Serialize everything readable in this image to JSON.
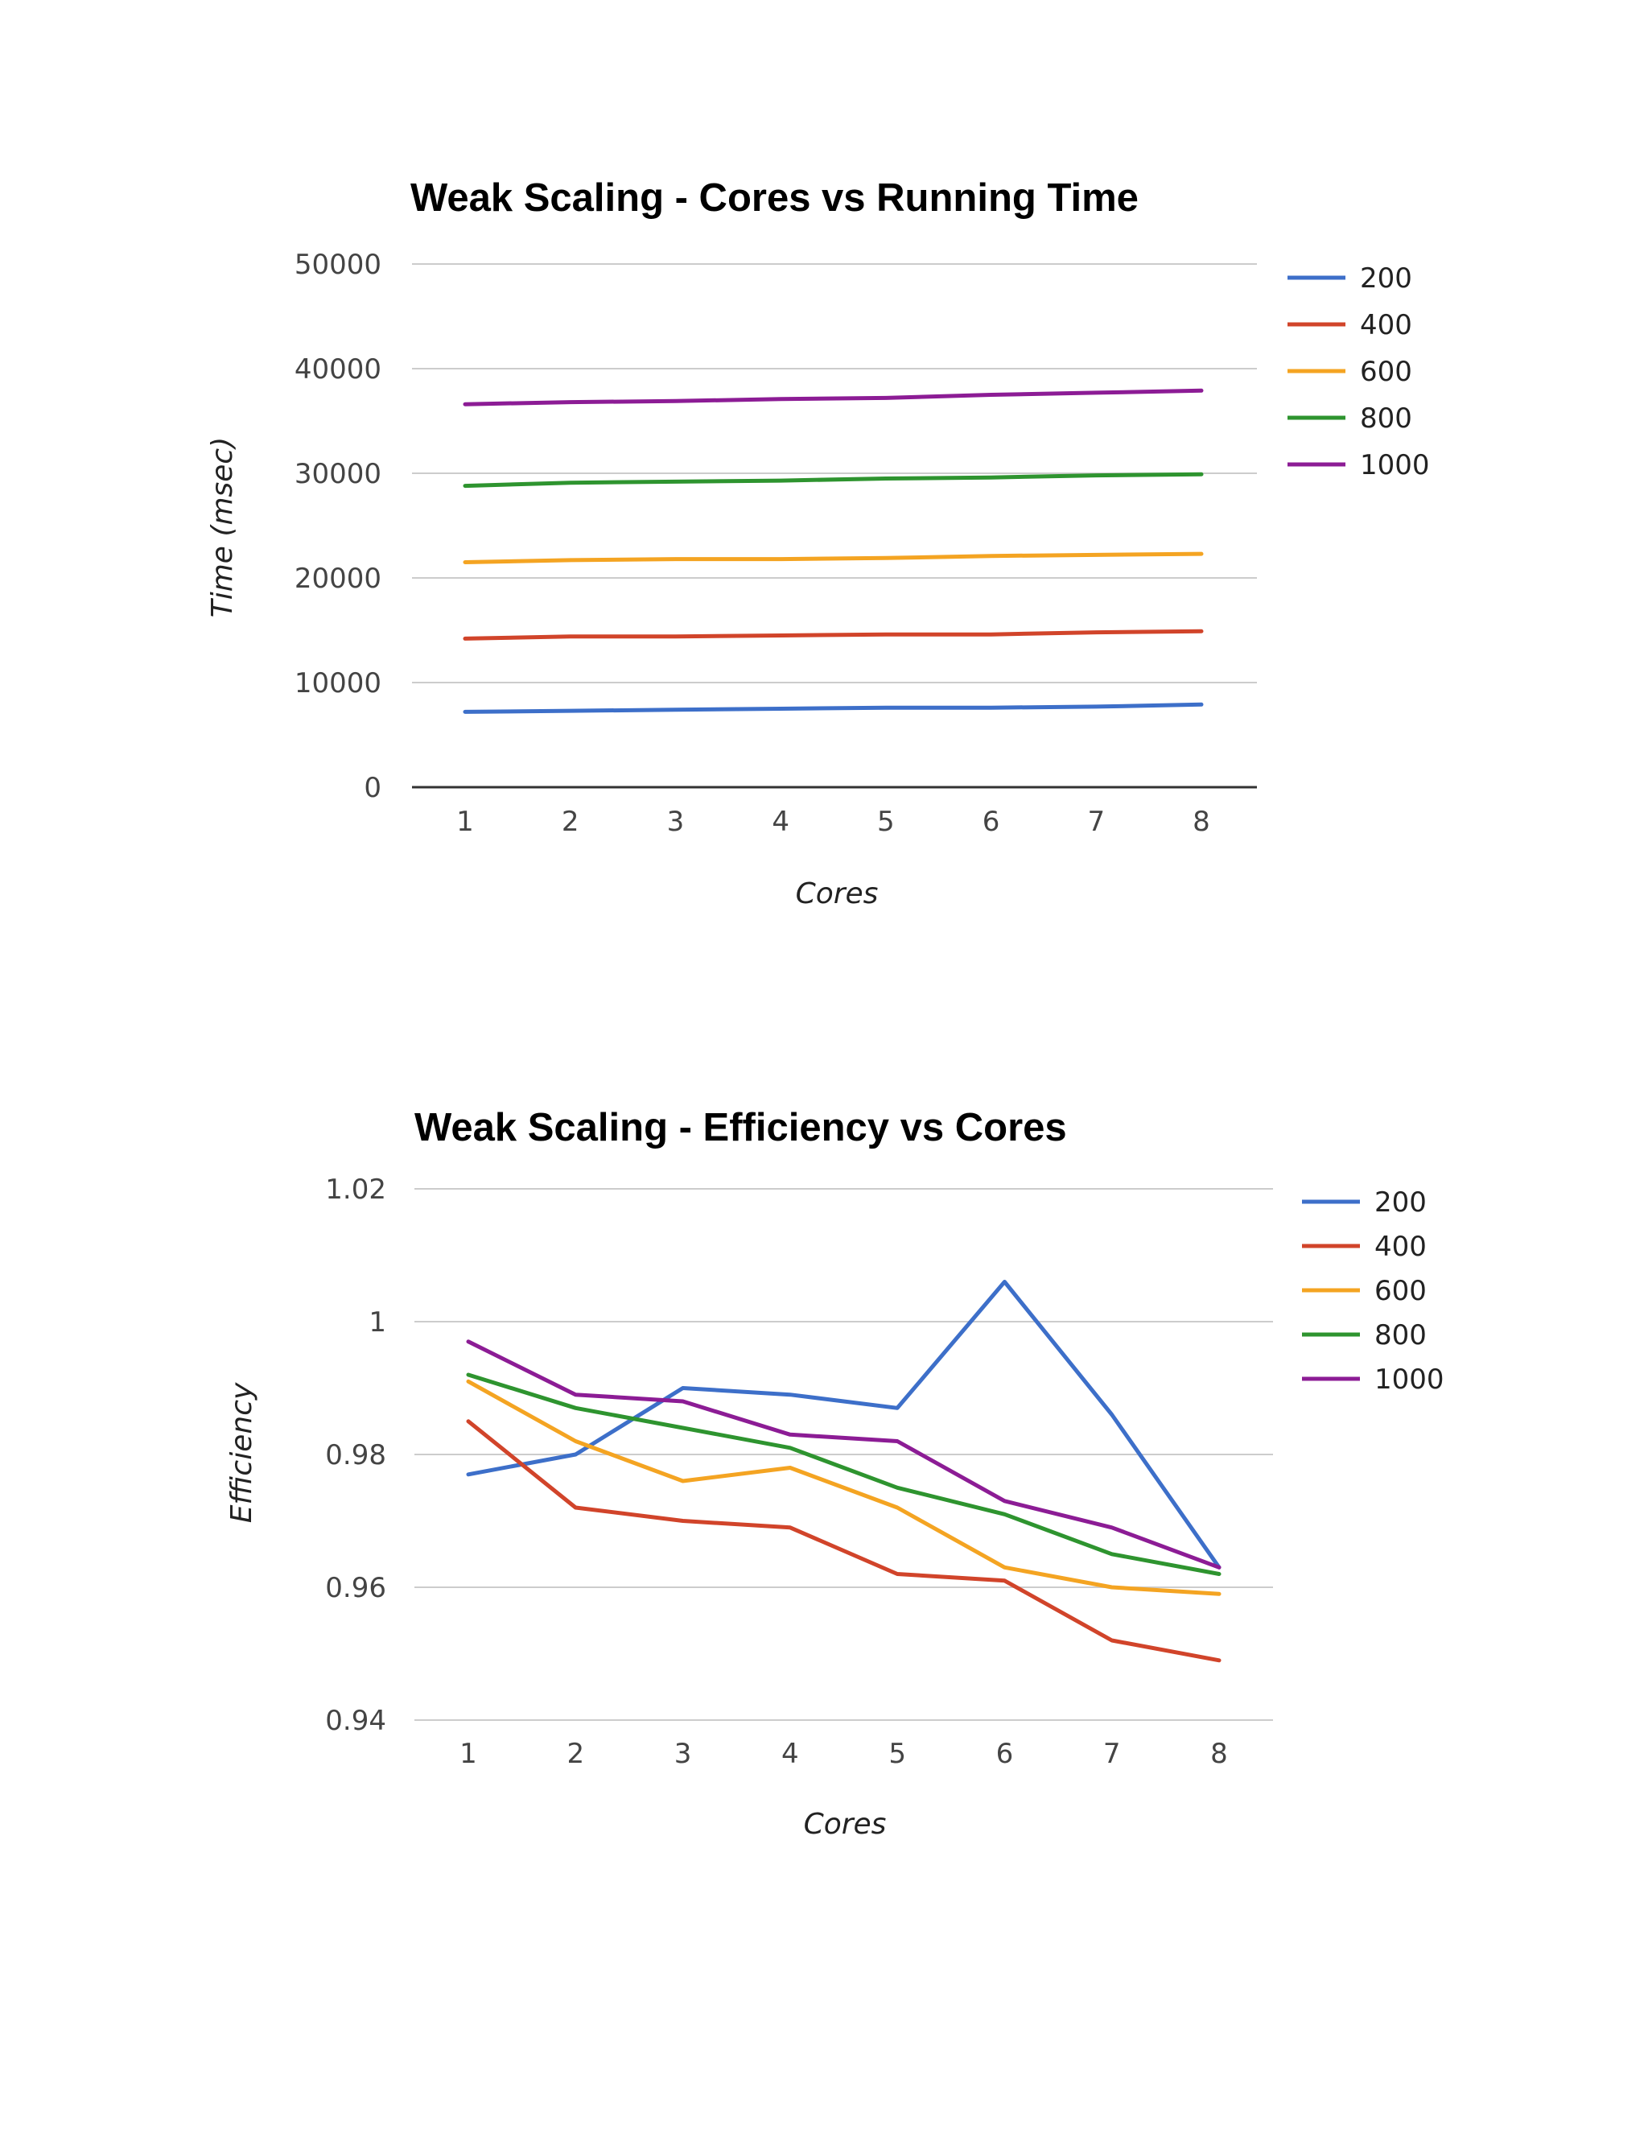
{
  "chart_data": [
    {
      "type": "line",
      "title": "Weak Scaling - Cores vs Running Time",
      "xlabel": "Cores",
      "ylabel": "Time (msec)",
      "x": [
        1,
        2,
        3,
        4,
        5,
        6,
        7,
        8
      ],
      "ylim": [
        0,
        50000
      ],
      "yticks": [
        "0",
        "10000",
        "20000",
        "30000",
        "40000",
        "50000"
      ],
      "grid": true,
      "legend_position": "right",
      "series": [
        {
          "name": "200",
          "color": "#3d6fc9",
          "values": [
            7200,
            7300,
            7400,
            7500,
            7600,
            7600,
            7700,
            7900
          ]
        },
        {
          "name": "400",
          "color": "#d1442a",
          "values": [
            14200,
            14400,
            14400,
            14500,
            14600,
            14600,
            14800,
            14900
          ]
        },
        {
          "name": "600",
          "color": "#f4a422",
          "values": [
            21500,
            21700,
            21800,
            21800,
            21900,
            22100,
            22200,
            22300
          ]
        },
        {
          "name": "800",
          "color": "#2e942f",
          "values": [
            28800,
            29100,
            29200,
            29300,
            29500,
            29600,
            29800,
            29900
          ]
        },
        {
          "name": "1000",
          "color": "#8c1c95",
          "values": [
            36600,
            36800,
            36900,
            37100,
            37200,
            37500,
            37700,
            37900
          ]
        }
      ]
    },
    {
      "type": "line",
      "title": "Weak Scaling - Efficiency vs Cores",
      "xlabel": "Cores",
      "ylabel": "Efficiency",
      "x": [
        1,
        2,
        3,
        4,
        5,
        6,
        7,
        8
      ],
      "ylim": [
        0.94,
        1.02
      ],
      "yticks": [
        "0.94",
        "0.96",
        "0.98",
        "1",
        "1.02"
      ],
      "grid": true,
      "legend_position": "right",
      "series": [
        {
          "name": "200",
          "color": "#3d6fc9",
          "values": [
            0.977,
            0.98,
            0.99,
            0.989,
            0.987,
            1.006,
            0.986,
            0.963
          ]
        },
        {
          "name": "400",
          "color": "#d1442a",
          "values": [
            0.985,
            0.972,
            0.97,
            0.969,
            0.962,
            0.961,
            0.952,
            0.949
          ]
        },
        {
          "name": "600",
          "color": "#f4a422",
          "values": [
            0.991,
            0.982,
            0.976,
            0.978,
            0.972,
            0.963,
            0.96,
            0.959
          ]
        },
        {
          "name": "800",
          "color": "#2e942f",
          "values": [
            0.992,
            0.987,
            0.984,
            0.981,
            0.975,
            0.971,
            0.965,
            0.962
          ]
        },
        {
          "name": "1000",
          "color": "#8c1c95",
          "values": [
            0.997,
            0.989,
            0.988,
            0.983,
            0.982,
            0.973,
            0.969,
            0.963
          ]
        }
      ]
    }
  ]
}
